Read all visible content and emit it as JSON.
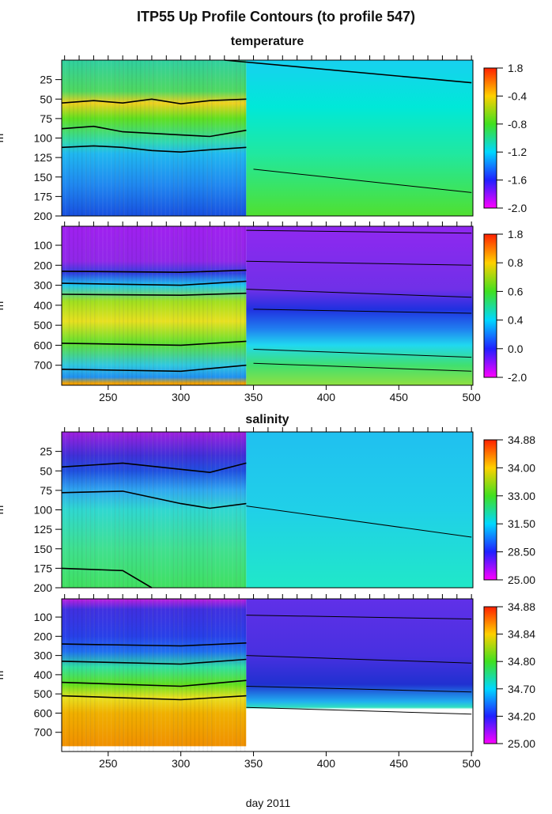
{
  "title": "ITP55 Up Profile Contours (to profile 547)",
  "xlabel": "day 2011",
  "chart_data": [
    {
      "type": "heatmap",
      "group": "temperature",
      "ylabel": "m",
      "xlim": [
        218,
        501
      ],
      "ylim": [
        0,
        200
      ],
      "yticks": [
        25,
        50,
        75,
        100,
        125,
        150,
        175,
        200
      ],
      "xticks": [],
      "transition_day": 345,
      "colorbar_ticks": [
        "1.8",
        "-0.4",
        "-0.8",
        "-1.2",
        "-1.6",
        "-2.0"
      ],
      "colorbar_colors": [
        "#ff2000",
        "#ffd000",
        "#40e020",
        "#00d8ff",
        "#2020ff",
        "#ff00ff"
      ],
      "left_stops": [
        [
          0,
          "#30d0a0"
        ],
        [
          40,
          "#50d860"
        ],
        [
          55,
          "#f0d020"
        ],
        [
          75,
          "#60e020"
        ],
        [
          105,
          "#30d8b0"
        ],
        [
          120,
          "#20b8f0"
        ],
        [
          160,
          "#2088f0"
        ],
        [
          200,
          "#1850e0"
        ]
      ],
      "right_stops": [
        [
          0,
          "#18d0f0"
        ],
        [
          60,
          "#00e8d8"
        ],
        [
          120,
          "#20e8a0"
        ],
        [
          200,
          "#50e030"
        ]
      ],
      "contours": [
        [
          [
            218,
            55
          ],
          [
            240,
            52
          ],
          [
            260,
            55
          ],
          [
            280,
            50
          ],
          [
            300,
            56
          ],
          [
            320,
            52
          ],
          [
            345,
            50
          ]
        ],
        [
          [
            218,
            88
          ],
          [
            240,
            85
          ],
          [
            260,
            92
          ],
          [
            280,
            94
          ],
          [
            300,
            96
          ],
          [
            320,
            98
          ],
          [
            345,
            90
          ]
        ],
        [
          [
            218,
            112
          ],
          [
            240,
            110
          ],
          [
            260,
            112
          ],
          [
            280,
            116
          ],
          [
            300,
            118
          ],
          [
            320,
            115
          ],
          [
            345,
            112
          ]
        ],
        [
          [
            330,
            0
          ],
          [
            500,
            29
          ]
        ],
        [
          [
            350,
            140
          ],
          [
            500,
            170
          ]
        ]
      ]
    },
    {
      "type": "heatmap",
      "group": "temperature",
      "ylabel": "m",
      "xlim": [
        218,
        501
      ],
      "ylim": [
        5,
        800
      ],
      "yticks": [
        100,
        200,
        300,
        400,
        500,
        600,
        700
      ],
      "xticks": [
        250,
        300,
        350,
        400,
        450,
        500
      ],
      "transition_day": 345,
      "colorbar_ticks": [
        "1.8",
        "0.8",
        "0.6",
        "0.4",
        "0.0",
        "-2.0"
      ],
      "colorbar_colors": [
        "#ff2000",
        "#ffd000",
        "#40e020",
        "#00d8ff",
        "#2020ff",
        "#ff00ff"
      ],
      "left_stops": [
        [
          5,
          "#a020f0"
        ],
        [
          180,
          "#9028e8"
        ],
        [
          240,
          "#3040e0"
        ],
        [
          300,
          "#20c8f0"
        ],
        [
          380,
          "#a0e020"
        ],
        [
          480,
          "#e8e020"
        ],
        [
          590,
          "#60e030"
        ],
        [
          700,
          "#30c8e0"
        ],
        [
          760,
          "#2090f0"
        ],
        [
          790,
          "#f0a000"
        ],
        [
          800,
          "#f0a000"
        ]
      ],
      "right_stops": [
        [
          5,
          "#9028f0"
        ],
        [
          320,
          "#7030e8"
        ],
        [
          420,
          "#2030e0"
        ],
        [
          520,
          "#2080f0"
        ],
        [
          600,
          "#20d8f0"
        ],
        [
          700,
          "#40e070"
        ],
        [
          800,
          "#90e040"
        ]
      ],
      "contours": [
        [
          [
            218,
            230
          ],
          [
            300,
            235
          ],
          [
            345,
            225
          ]
        ],
        [
          [
            218,
            290
          ],
          [
            300,
            300
          ],
          [
            345,
            280
          ]
        ],
        [
          [
            218,
            345
          ],
          [
            300,
            350
          ],
          [
            345,
            340
          ]
        ],
        [
          [
            218,
            590
          ],
          [
            300,
            600
          ],
          [
            345,
            580
          ]
        ],
        [
          [
            218,
            720
          ],
          [
            300,
            730
          ],
          [
            345,
            700
          ]
        ],
        [
          [
            345,
            25
          ],
          [
            500,
            40
          ]
        ],
        [
          [
            345,
            180
          ],
          [
            500,
            200
          ]
        ],
        [
          [
            345,
            320
          ],
          [
            500,
            360
          ]
        ],
        [
          [
            350,
            420
          ],
          [
            500,
            440
          ]
        ],
        [
          [
            350,
            620
          ],
          [
            500,
            660
          ]
        ],
        [
          [
            350,
            690
          ],
          [
            500,
            730
          ]
        ]
      ]
    },
    {
      "type": "heatmap",
      "group": "salinity",
      "ylabel": "m",
      "xlim": [
        218,
        501
      ],
      "ylim": [
        0,
        200
      ],
      "yticks": [
        25,
        50,
        75,
        100,
        125,
        150,
        175,
        200
      ],
      "xticks": [],
      "transition_day": 345,
      "colorbar_ticks": [
        "34.88",
        "34.00",
        "33.00",
        "31.50",
        "28.50",
        "25.00"
      ],
      "colorbar_colors": [
        "#ff2000",
        "#ffd000",
        "#40e020",
        "#00d8ff",
        "#2020ff",
        "#ff00ff"
      ],
      "left_stops": [
        [
          0,
          "#a020e0"
        ],
        [
          30,
          "#4030d8"
        ],
        [
          50,
          "#2050e0"
        ],
        [
          75,
          "#30a8f0"
        ],
        [
          100,
          "#30d8d0"
        ],
        [
          150,
          "#40e090"
        ],
        [
          200,
          "#40e060"
        ]
      ],
      "right_stops": [
        [
          0,
          "#20c0f0"
        ],
        [
          100,
          "#20d0e8"
        ],
        [
          200,
          "#20e8c8"
        ]
      ],
      "contours": [
        [
          [
            218,
            45
          ],
          [
            260,
            40
          ],
          [
            300,
            48
          ],
          [
            320,
            52
          ],
          [
            345,
            40
          ]
        ],
        [
          [
            218,
            78
          ],
          [
            260,
            76
          ],
          [
            300,
            92
          ],
          [
            320,
            98
          ],
          [
            345,
            92
          ]
        ],
        [
          [
            345,
            95
          ],
          [
            500,
            135
          ]
        ],
        [
          [
            218,
            175
          ],
          [
            260,
            178
          ],
          [
            280,
            200
          ]
        ]
      ]
    },
    {
      "type": "heatmap",
      "group": "salinity",
      "ylabel": "m",
      "xlim": [
        218,
        501
      ],
      "ylim": [
        5,
        800
      ],
      "yticks": [
        100,
        200,
        300,
        400,
        500,
        600,
        700
      ],
      "xticks": [
        250,
        300,
        350,
        400,
        450,
        500
      ],
      "transition_day": 345,
      "colorbar_ticks": [
        "34.88",
        "34.84",
        "34.80",
        "34.70",
        "34.20",
        "25.00"
      ],
      "colorbar_colors": [
        "#ff2000",
        "#ffd000",
        "#40e020",
        "#00d8ff",
        "#2020ff",
        "#ff00ff"
      ],
      "left_stops": [
        [
          5,
          "#c020e0"
        ],
        [
          60,
          "#4030e0"
        ],
        [
          200,
          "#2840e8"
        ],
        [
          280,
          "#2070f0"
        ],
        [
          360,
          "#30e0a0"
        ],
        [
          450,
          "#60e020"
        ],
        [
          520,
          "#e8e020"
        ],
        [
          600,
          "#f0b000"
        ],
        [
          770,
          "#f09000"
        ],
        [
          775,
          "#ffffff"
        ],
        [
          800,
          "#ffffff"
        ]
      ],
      "right_stops": [
        [
          5,
          "#6030e8"
        ],
        [
          300,
          "#4830e0"
        ],
        [
          450,
          "#2030d0"
        ],
        [
          540,
          "#20b0f0"
        ],
        [
          570,
          "#30e0c0"
        ],
        [
          580,
          "#ffffff"
        ],
        [
          800,
          "#ffffff"
        ]
      ],
      "contours": [
        [
          [
            218,
            240
          ],
          [
            300,
            250
          ],
          [
            345,
            235
          ]
        ],
        [
          [
            218,
            330
          ],
          [
            300,
            345
          ],
          [
            345,
            320
          ]
        ],
        [
          [
            218,
            440
          ],
          [
            300,
            460
          ],
          [
            345,
            430
          ]
        ],
        [
          [
            218,
            510
          ],
          [
            300,
            530
          ],
          [
            345,
            510
          ]
        ],
        [
          [
            345,
            90
          ],
          [
            500,
            110
          ]
        ],
        [
          [
            345,
            300
          ],
          [
            500,
            340
          ]
        ],
        [
          [
            345,
            460
          ],
          [
            500,
            490
          ]
        ],
        [
          [
            345,
            570
          ],
          [
            500,
            605
          ]
        ]
      ]
    }
  ]
}
